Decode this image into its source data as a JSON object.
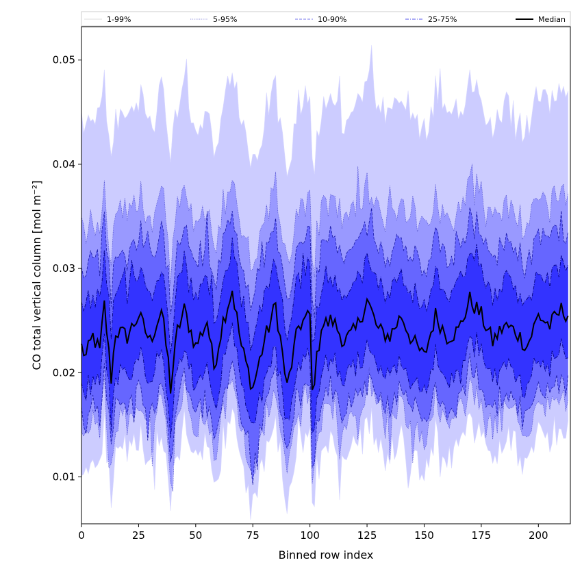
{
  "chart_data": {
    "type": "area",
    "xlabel": "Binned row index",
    "ylabel": "CO total vertical column [mol m⁻²]",
    "xlim": [
      0,
      214
    ],
    "ylim": [
      0.0055,
      0.0532
    ],
    "x_ticks": [
      0,
      25,
      50,
      75,
      100,
      125,
      150,
      175,
      200
    ],
    "y_ticks": [
      0.01,
      0.02,
      0.03,
      0.04,
      0.05
    ],
    "x_tick_labels": [
      "0",
      "25",
      "50",
      "75",
      "100",
      "125",
      "150",
      "175",
      "200"
    ],
    "y_tick_labels": [
      "0.01",
      "0.02",
      "0.03",
      "0.04",
      "0.05"
    ],
    "legend_position": "top",
    "n_points": 214,
    "median_profile": [
      [
        0,
        0.0225
      ],
      [
        2,
        0.0215
      ],
      [
        5,
        0.0235
      ],
      [
        8,
        0.022
      ],
      [
        10,
        0.0265
      ],
      [
        13,
        0.0195
      ],
      [
        15,
        0.024
      ],
      [
        20,
        0.0235
      ],
      [
        25,
        0.0255
      ],
      [
        30,
        0.023
      ],
      [
        35,
        0.026
      ],
      [
        38,
        0.021
      ],
      [
        39,
        0.0185
      ],
      [
        42,
        0.024
      ],
      [
        45,
        0.026
      ],
      [
        50,
        0.0225
      ],
      [
        55,
        0.025
      ],
      [
        58,
        0.0205
      ],
      [
        62,
        0.025
      ],
      [
        66,
        0.028
      ],
      [
        70,
        0.0225
      ],
      [
        75,
        0.0185
      ],
      [
        80,
        0.023
      ],
      [
        85,
        0.0265
      ],
      [
        90,
        0.0185
      ],
      [
        95,
        0.0245
      ],
      [
        100,
        0.0255
      ],
      [
        101,
        0.018
      ],
      [
        105,
        0.0245
      ],
      [
        110,
        0.025
      ],
      [
        115,
        0.023
      ],
      [
        120,
        0.024
      ],
      [
        125,
        0.027
      ],
      [
        130,
        0.024
      ],
      [
        135,
        0.0235
      ],
      [
        140,
        0.0255
      ],
      [
        145,
        0.023
      ],
      [
        150,
        0.0215
      ],
      [
        155,
        0.0255
      ],
      [
        160,
        0.0235
      ],
      [
        165,
        0.024
      ],
      [
        170,
        0.027
      ],
      [
        175,
        0.0255
      ],
      [
        180,
        0.023
      ],
      [
        185,
        0.0245
      ],
      [
        190,
        0.024
      ],
      [
        195,
        0.0225
      ],
      [
        200,
        0.0255
      ],
      [
        205,
        0.0245
      ],
      [
        210,
        0.026
      ],
      [
        214,
        0.0255
      ]
    ],
    "series": [
      {
        "name": "1-99%",
        "lower_offset": -0.0108,
        "upper_offset": 0.0205,
        "jitter": 0.0014,
        "fill": "#ccccff",
        "line_color": "#d8d8ff",
        "line_style": "solid",
        "line_width": 0.6
      },
      {
        "name": "5-95%",
        "lower_offset": -0.0078,
        "upper_offset": 0.011,
        "jitter": 0.0012,
        "fill": "#9999ff",
        "line_color": "#4d4dcc",
        "line_style": "dotted",
        "line_width": 0.7
      },
      {
        "name": "10-90%",
        "lower_offset": -0.0063,
        "upper_offset": 0.0075,
        "jitter": 0.001,
        "fill": "#6666ff",
        "line_color": "#1a1aa6",
        "line_style": "dashed",
        "line_width": 0.8
      },
      {
        "name": "25-75%",
        "lower_offset": -0.0035,
        "upper_offset": 0.004,
        "jitter": 0.0008,
        "fill": "#3333ff",
        "line_color": "#000080",
        "line_style": "dashdot",
        "line_width": 0.9
      },
      {
        "name": "Median",
        "fill": "none",
        "line_color": "#000000",
        "line_style": "solid",
        "line_width": 2
      }
    ]
  }
}
